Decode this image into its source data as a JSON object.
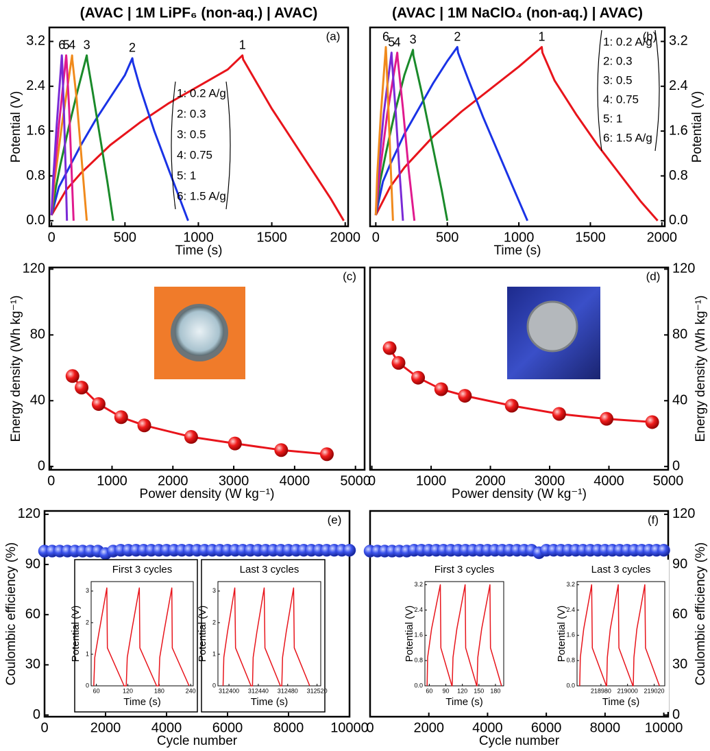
{
  "chart_data": [
    {
      "type": "line",
      "title": "(AVAC | 1M LiPF₆ (non-aq.) | AVAC)",
      "panel_label": "(a)",
      "x_label": "Time (s)",
      "y_label": "Potential (V)",
      "y_axis_side": "left",
      "xlim": [
        -15,
        2020
      ],
      "ylim": [
        -0.1,
        3.45
      ],
      "xticks": [
        0,
        500,
        1000,
        1500,
        2000
      ],
      "yticks": [
        {
          "value": 0,
          "label": "0.0"
        },
        0.8,
        1.6,
        2.4,
        3.2
      ],
      "curve_labels": [
        "1",
        "2",
        "3",
        "4",
        "5",
        "6"
      ],
      "series": [
        {
          "name": "1: 0.2 A/g",
          "color": "#e8141b",
          "x": [
            0,
            100,
            200,
            400,
            600,
            800,
            1000,
            1200,
            1300,
            1305,
            1400,
            1500,
            1600,
            1700,
            1800,
            1900,
            1990
          ],
          "values": [
            0.1,
            0.55,
            0.85,
            1.35,
            1.75,
            2.1,
            2.4,
            2.7,
            2.95,
            2.88,
            2.45,
            2.0,
            1.6,
            1.2,
            0.8,
            0.4,
            0
          ]
        },
        {
          "name": "2: 0.3",
          "color": "#1a33e6",
          "x": [
            0,
            50,
            100,
            200,
            300,
            400,
            500,
            550,
            555,
            600,
            700,
            800,
            930
          ],
          "values": [
            0.1,
            0.6,
            0.85,
            1.35,
            1.8,
            2.2,
            2.6,
            2.9,
            2.82,
            2.4,
            1.6,
            0.9,
            0
          ]
        },
        {
          "name": "3: 0.5",
          "color": "#1a8a2a",
          "x": [
            0,
            30,
            60,
            120,
            180,
            240,
            243,
            280,
            330,
            380,
            420
          ],
          "values": [
            0.1,
            0.6,
            1.0,
            1.7,
            2.35,
            2.95,
            2.87,
            2.3,
            1.5,
            0.7,
            0
          ]
        },
        {
          "name": "4: 0.75",
          "color": "#f08a1c",
          "x": [
            0,
            20,
            70,
            140,
            142,
            170,
            205,
            240
          ],
          "values": [
            0.1,
            0.7,
            1.7,
            2.95,
            2.87,
            2.2,
            1.1,
            0
          ]
        },
        {
          "name": "5: 1",
          "color": "#e01a8e",
          "x": [
            0,
            15,
            50,
            100,
            102,
            120,
            135,
            150
          ],
          "values": [
            0.1,
            0.7,
            1.7,
            2.95,
            2.87,
            2.0,
            1.0,
            0
          ]
        },
        {
          "name": "6: 1.5 A/g",
          "color": "#7a2ad6",
          "x": [
            0,
            10,
            35,
            70,
            72,
            85,
            95,
            105
          ],
          "values": [
            0.1,
            0.7,
            1.7,
            2.95,
            2.87,
            1.9,
            1.0,
            0
          ]
        }
      ]
    },
    {
      "type": "line",
      "title": "(AVAC | 1M NaClO₄ (non-aq.) | AVAC)",
      "panel_label": "(b)",
      "x_label": "Time (s)",
      "y_label": "Potential (V)",
      "y_axis_side": "right",
      "xlim": [
        -40,
        2020
      ],
      "ylim": [
        -0.1,
        3.45
      ],
      "xticks": [
        0,
        500,
        1000,
        1500,
        2000
      ],
      "yticks": [
        {
          "value": 0,
          "label": "0.0"
        },
        0.8,
        1.6,
        2.4,
        3.2
      ],
      "curve_labels": [
        "1",
        "2",
        "3",
        "4",
        "5",
        "6"
      ],
      "series": [
        {
          "name": "1: 0.2 A/g",
          "color": "#e8141b",
          "x": [
            0,
            100,
            200,
            400,
            600,
            800,
            1000,
            1160,
            1165,
            1250,
            1400,
            1550,
            1700,
            1850,
            1970
          ],
          "values": [
            0.1,
            0.6,
            0.95,
            1.5,
            1.95,
            2.35,
            2.75,
            3.1,
            3.0,
            2.5,
            1.9,
            1.35,
            0.85,
            0.35,
            0
          ]
        },
        {
          "name": "2: 0.3",
          "color": "#1a33e6",
          "x": [
            0,
            50,
            100,
            200,
            300,
            400,
            500,
            570,
            575,
            650,
            750,
            850,
            950,
            1060
          ],
          "values": [
            0.1,
            0.7,
            1.0,
            1.55,
            2.0,
            2.45,
            2.85,
            3.1,
            3.0,
            2.5,
            1.85,
            1.25,
            0.65,
            0
          ]
        },
        {
          "name": "3: 0.5",
          "color": "#1a8a2a",
          "x": [
            0,
            30,
            70,
            130,
            200,
            260,
            263,
            320,
            400,
            460,
            500
          ],
          "values": [
            0.1,
            0.7,
            1.2,
            1.9,
            2.6,
            3.05,
            2.95,
            2.3,
            1.3,
            0.55,
            0
          ]
        },
        {
          "name": "4: 0.75",
          "color": "#e01a8e",
          "x": [
            0,
            25,
            80,
            150,
            153,
            190,
            230,
            270
          ],
          "values": [
            0.1,
            0.8,
            1.9,
            3.0,
            2.9,
            2.0,
            0.9,
            0
          ]
        },
        {
          "name": "5: 1",
          "color": "#7a2ad6",
          "x": [
            0,
            15,
            55,
            110,
            112,
            140,
            165,
            190
          ],
          "values": [
            0.1,
            0.8,
            1.9,
            3.0,
            2.9,
            1.9,
            0.9,
            0
          ]
        },
        {
          "name": "6: 1.5 A/g",
          "color": "#f08a1c",
          "x": [
            0,
            10,
            35,
            70,
            72,
            90,
            105,
            120
          ],
          "values": [
            0.1,
            0.8,
            1.9,
            3.1,
            3.0,
            1.9,
            0.9,
            0
          ]
        }
      ]
    },
    {
      "type": "line",
      "markers": true,
      "panel_label": "(c)",
      "x_label": "Power density (W kg⁻¹)",
      "y_label": "Energy density (Wh kg⁻¹)",
      "y_axis_side": "left",
      "color": "#e8141b",
      "xlim": [
        -30,
        5150
      ],
      "ylim": [
        -2,
        121
      ],
      "xticks": [
        0,
        1000,
        2000,
        3000,
        4000,
        5000
      ],
      "yticks": [
        0,
        40,
        80,
        120
      ],
      "x": [
        350,
        500,
        780,
        1150,
        1530,
        2300,
        3020,
        3780,
        4530
      ],
      "values": [
        55,
        48,
        38,
        30,
        25,
        18,
        14,
        10,
        7.5
      ]
    },
    {
      "type": "line",
      "markers": true,
      "panel_label": "(d)",
      "x_label": "Power density (W kg⁻¹)",
      "y_label": "Energy density (Wh kg⁻¹)",
      "y_axis_side": "right",
      "color": "#e8141b",
      "xlim": [
        -30,
        5000
      ],
      "ylim": [
        -2,
        121
      ],
      "xticks": [
        0,
        1000,
        2000,
        3000,
        4000,
        5000
      ],
      "yticks": [
        0,
        40,
        80,
        120
      ],
      "x": [
        300,
        450,
        780,
        1170,
        1570,
        2360,
        3160,
        3960,
        4730
      ],
      "values": [
        72,
        63,
        54,
        47,
        43,
        37,
        32,
        29,
        27
      ]
    },
    {
      "type": "scatter",
      "panel_label": "(e)",
      "x_label": "Cycle number",
      "y_label": "Coulombic efficiency (%)",
      "y_axis_side": "left",
      "color": "#2b3fe0",
      "xlim": [
        0,
        10000
      ],
      "ylim": [
        -1,
        122
      ],
      "xticks": [
        0,
        2000,
        4000,
        6000,
        8000,
        10000
      ],
      "yticks": [
        0,
        30,
        60,
        90,
        120
      ],
      "x": [
        0,
        250,
        500,
        750,
        1000,
        1250,
        1500,
        1750,
        2000,
        2250,
        2500,
        2750,
        3000,
        3250,
        3500,
        3750,
        4000,
        4250,
        4500,
        4750,
        5000,
        5250,
        5500,
        5750,
        6000,
        6250,
        6500,
        6750,
        7000,
        7250,
        7500,
        7750,
        8000,
        8250,
        8500,
        8750,
        9000,
        9250,
        9500,
        9750,
        10000
      ],
      "values": [
        98,
        98,
        98,
        98,
        98,
        98,
        98,
        98,
        96.5,
        98,
        98.5,
        98.5,
        98.5,
        98.5,
        98.5,
        98.5,
        98.5,
        98.5,
        98.5,
        98.5,
        98.5,
        98.5,
        98.5,
        98.5,
        98.5,
        98.5,
        98.5,
        98.5,
        98.5,
        98.5,
        98.5,
        98.5,
        98.5,
        98.5,
        98.5,
        98.5,
        98.5,
        98.5,
        98.5,
        98.5,
        98.5
      ],
      "insets": [
        {
          "type": "line",
          "title": "First 3 cycles",
          "x_label": "Time (s)",
          "y_label": "Potential (V)",
          "color": "#e8141b",
          "xlim": [
            50,
            245
          ],
          "ylim": [
            0,
            3.3
          ],
          "xticks": [
            60,
            120,
            180,
            240
          ],
          "yticks": [
            0,
            1,
            2,
            3
          ],
          "x": [
            55,
            57,
            65,
            80,
            81,
            113,
            117,
            119,
            127,
            142,
            143,
            175,
            179,
            181,
            189,
            204,
            205,
            237
          ],
          "values": [
            0,
            0.9,
            1.7,
            3.1,
            1.2,
            0,
            0,
            0.9,
            1.7,
            3.1,
            1.2,
            0,
            0,
            0.9,
            1.7,
            3.1,
            1.2,
            0
          ]
        },
        {
          "type": "line",
          "title": "Last 3 cycles",
          "x_label": "Time (s)",
          "y_label": "Potential (V)",
          "color": "#e8141b",
          "xlim": [
            312385,
            312525
          ],
          "ylim": [
            0,
            3.3
          ],
          "xticks": [
            312400,
            312440,
            312480,
            312520
          ],
          "yticks": [
            0,
            1,
            2,
            3
          ],
          "x": [
            312392,
            312393,
            312398,
            312408,
            312409,
            312430,
            312432,
            312433,
            312438,
            312448,
            312449,
            312470,
            312472,
            312473,
            312478,
            312488,
            312489,
            312510
          ],
          "values": [
            0,
            0.9,
            1.7,
            3.1,
            1.2,
            0,
            0,
            0.9,
            1.7,
            3.1,
            1.2,
            0,
            0,
            0.9,
            1.7,
            3.1,
            1.2,
            0
          ]
        }
      ]
    },
    {
      "type": "scatter",
      "panel_label": "(f)",
      "x_label": "Cycle number",
      "y_label": "Coulombic efficiency (%)",
      "y_axis_side": "right",
      "color": "#2b3fe0",
      "xlim": [
        0,
        10150
      ],
      "ylim": [
        -1,
        122
      ],
      "xticks": [
        0,
        2000,
        4000,
        6000,
        8000,
        10000
      ],
      "yticks": [
        0,
        30,
        60,
        90,
        120
      ],
      "x": [
        0,
        250,
        500,
        750,
        1000,
        1250,
        1500,
        1750,
        2000,
        2250,
        2500,
        2750,
        3000,
        3250,
        3500,
        3750,
        4000,
        4250,
        4500,
        4750,
        5000,
        5250,
        5500,
        5750,
        6000,
        6250,
        6500,
        6750,
        7000,
        7250,
        7500,
        7750,
        8000,
        8250,
        8500,
        8750,
        9000,
        9250,
        9500,
        9750,
        10000
      ],
      "values": [
        98,
        98,
        98,
        98,
        98,
        98,
        98.5,
        98.5,
        98.5,
        98.5,
        98.5,
        98.5,
        98.5,
        98.5,
        98.5,
        98.5,
        98.5,
        98.5,
        98.5,
        98.5,
        98.5,
        98.5,
        98.5,
        97,
        98.5,
        98.5,
        98.5,
        98.5,
        98.5,
        98.5,
        98.5,
        98.5,
        98.5,
        98.5,
        98.5,
        98.5,
        98.5,
        98.5,
        98.5,
        98.5,
        98.5
      ],
      "insets": [
        {
          "type": "line",
          "title": "First 3 cycles",
          "x_label": "Time (s)",
          "y_label": "Potential (V)",
          "color": "#e8141b",
          "xlim": [
            52,
            195
          ],
          "ylim": [
            0,
            3.3
          ],
          "xticks": [
            60,
            90,
            120,
            150,
            180
          ],
          "yticks": [
            {
              "value": 0,
              "label": "0.0"
            },
            0.8,
            1.6,
            2.4,
            3.2
          ],
          "x": [
            56,
            57,
            64,
            80,
            81,
            101,
            101.5,
            103,
            110,
            125,
            126,
            146,
            146.5,
            148,
            155,
            170,
            171,
            191
          ],
          "values": [
            0,
            0.9,
            1.8,
            3.2,
            1.2,
            0,
            0,
            0.9,
            1.8,
            3.2,
            1.2,
            0,
            0,
            0.9,
            1.8,
            3.2,
            1.2,
            0
          ]
        },
        {
          "type": "line",
          "title": "Last 3 cycles",
          "x_label": "Time (s)",
          "y_label": "Potential (V)",
          "color": "#e8141b",
          "xlim": [
            218962,
            219028
          ],
          "ylim": [
            0,
            3.3
          ],
          "xticks": [
            218980,
            219000,
            219020
          ],
          "yticks": [
            {
              "value": 0,
              "label": "0.0"
            },
            0.8,
            1.6,
            2.4,
            3.2
          ],
          "x": [
            218964,
            218964.5,
            218967,
            218973,
            218973.5,
            218984,
            218984.3,
            218984.8,
            218987,
            218993,
            218993.5,
            219004,
            219004.3,
            219004.8,
            219007,
            219013,
            219013.5,
            219024
          ],
          "values": [
            0,
            0.9,
            1.8,
            3.2,
            1.2,
            0,
            0,
            0.9,
            1.8,
            3.2,
            1.2,
            0,
            0,
            0.9,
            1.8,
            3.2,
            1.2,
            0
          ]
        }
      ]
    }
  ]
}
